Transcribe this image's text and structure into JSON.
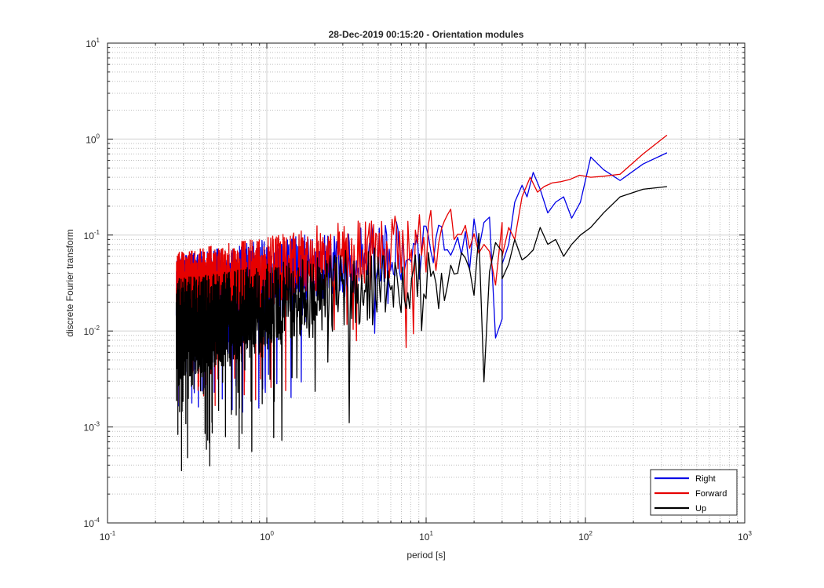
{
  "chart_data": {
    "type": "line",
    "title": "28-Dec-2019 00:15:20 - Orientation modules",
    "xlabel": "period [s]",
    "ylabel": "discrete Fourier transform",
    "xscale": "log",
    "yscale": "log",
    "xlim": [
      0.1,
      1000
    ],
    "ylim": [
      0.0001,
      10
    ],
    "grid": true,
    "minor_grid": true,
    "legend_position": "bottom-right",
    "x_ticks": [
      {
        "base": "10",
        "exp": "-1"
      },
      {
        "base": "10",
        "exp": "0"
      },
      {
        "base": "10",
        "exp": "1"
      },
      {
        "base": "10",
        "exp": "2"
      },
      {
        "base": "10",
        "exp": "3"
      }
    ],
    "y_ticks": [
      {
        "base": "10",
        "exp": "-4"
      },
      {
        "base": "10",
        "exp": "-3"
      },
      {
        "base": "10",
        "exp": "-2"
      },
      {
        "base": "10",
        "exp": "-1"
      },
      {
        "base": "10",
        "exp": "0"
      },
      {
        "base": "10",
        "exp": "1"
      }
    ],
    "noise_region": {
      "x_start": 0.27,
      "x_end": 30,
      "points": 1100
    },
    "series": [
      {
        "name": "Right",
        "color": "#0000e6",
        "noise_band_low": [
          [
            0.27,
            0.01
          ],
          [
            1,
            0.015
          ],
          [
            3,
            0.022
          ],
          [
            10,
            0.035
          ],
          [
            30,
            0.05
          ]
        ],
        "noise_band_high": [
          [
            0.27,
            0.06
          ],
          [
            1,
            0.09
          ],
          [
            3,
            0.12
          ],
          [
            10,
            0.16
          ],
          [
            30,
            0.2
          ]
        ],
        "x": [
          30,
          33,
          36,
          40,
          43,
          47,
          52,
          58,
          65,
          73,
          82,
          93,
          108,
          130,
          165,
          230,
          325
        ],
        "y": [
          0.05,
          0.08,
          0.22,
          0.33,
          0.25,
          0.45,
          0.3,
          0.17,
          0.22,
          0.25,
          0.15,
          0.22,
          0.65,
          0.48,
          0.37,
          0.55,
          0.72
        ]
      },
      {
        "name": "Forward",
        "color": "#e60000",
        "noise_band_low": [
          [
            0.27,
            0.012
          ],
          [
            1,
            0.018
          ],
          [
            3,
            0.028
          ],
          [
            10,
            0.04
          ],
          [
            30,
            0.06
          ]
        ],
        "noise_band_high": [
          [
            0.27,
            0.065
          ],
          [
            1,
            0.1
          ],
          [
            3,
            0.14
          ],
          [
            10,
            0.19
          ],
          [
            30,
            0.22
          ]
        ],
        "x": [
          30,
          33,
          36,
          40,
          45,
          50,
          55,
          62,
          70,
          80,
          92,
          108,
          130,
          165,
          230,
          325
        ],
        "y": [
          0.06,
          0.12,
          0.09,
          0.25,
          0.4,
          0.28,
          0.32,
          0.35,
          0.36,
          0.38,
          0.42,
          0.4,
          0.41,
          0.43,
          0.7,
          1.1
        ]
      },
      {
        "name": "Up",
        "color": "#000000",
        "noise_band_low": [
          [
            0.27,
            0.003
          ],
          [
            1,
            0.006
          ],
          [
            3,
            0.01
          ],
          [
            10,
            0.015
          ],
          [
            30,
            0.02
          ]
        ],
        "noise_band_high": [
          [
            0.27,
            0.035
          ],
          [
            1,
            0.05
          ],
          [
            3,
            0.07
          ],
          [
            10,
            0.09
          ],
          [
            30,
            0.12
          ]
        ],
        "x": [
          30,
          33,
          36,
          40,
          43,
          47,
          52,
          58,
          65,
          73,
          82,
          93,
          108,
          130,
          165,
          230,
          325
        ],
        "y": [
          0.035,
          0.05,
          0.09,
          0.055,
          0.06,
          0.07,
          0.12,
          0.08,
          0.09,
          0.06,
          0.08,
          0.1,
          0.12,
          0.17,
          0.25,
          0.3,
          0.32
        ]
      }
    ]
  }
}
